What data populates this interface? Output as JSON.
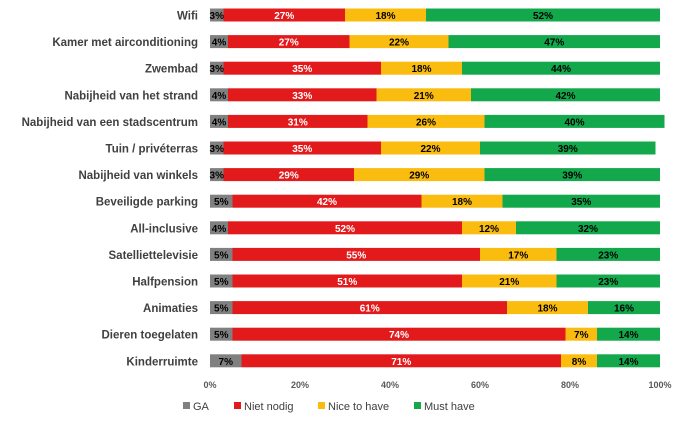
{
  "chart_data": {
    "type": "bar",
    "orientation": "horizontal",
    "stacked": true,
    "normalized": true,
    "categories": [
      "Wifi",
      "Kamer met airconditioning",
      "Zwembad",
      "Nabijheid van het strand",
      "Nabijheid van een stadscentrum",
      "Tuin / privéterras",
      "Nabijheid van winkels",
      "Beveiligde parking",
      "All-inclusive",
      "Satelliettelevisie",
      "Halfpension",
      "Animaties",
      "Dieren toegelaten",
      "Kinderruimte"
    ],
    "series": [
      {
        "name": "GA",
        "color": "#808080",
        "label_color": "#000000",
        "values": [
          3,
          4,
          3,
          4,
          4,
          3,
          3,
          5,
          4,
          5,
          5,
          5,
          5,
          7
        ]
      },
      {
        "name": "Niet nodig",
        "color": "#e31a1c",
        "label_color": "#ffffff",
        "values": [
          27,
          27,
          35,
          33,
          31,
          35,
          29,
          42,
          52,
          55,
          51,
          61,
          74,
          71
        ]
      },
      {
        "name": "Nice to have",
        "color": "#fbbc10",
        "label_color": "#000000",
        "values": [
          18,
          22,
          18,
          21,
          26,
          22,
          29,
          18,
          12,
          17,
          21,
          18,
          7,
          8
        ]
      },
      {
        "name": "Must have",
        "color": "#12a84b",
        "label_color": "#000000",
        "values": [
          52,
          47,
          44,
          42,
          40,
          39,
          39,
          35,
          32,
          23,
          23,
          16,
          14,
          14
        ]
      }
    ],
    "value_suffix": "%",
    "xlim": [
      0,
      100
    ],
    "xticks": [
      "0%",
      "20%",
      "40%",
      "60%",
      "80%",
      "100%"
    ],
    "title": "",
    "xlabel": "",
    "ylabel": "",
    "grid": false,
    "legend": {
      "position": "bottom",
      "entries": [
        "GA",
        "Niet nodig",
        "Nice to have",
        "Must have"
      ]
    }
  }
}
